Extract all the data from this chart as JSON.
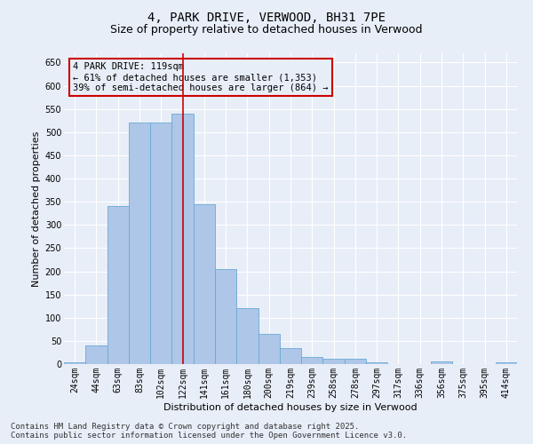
{
  "title_line1": "4, PARK DRIVE, VERWOOD, BH31 7PE",
  "title_line2": "Size of property relative to detached houses in Verwood",
  "xlabel": "Distribution of detached houses by size in Verwood",
  "ylabel": "Number of detached properties",
  "categories": [
    "24sqm",
    "44sqm",
    "63sqm",
    "83sqm",
    "102sqm",
    "122sqm",
    "141sqm",
    "161sqm",
    "180sqm",
    "200sqm",
    "219sqm",
    "239sqm",
    "258sqm",
    "278sqm",
    "297sqm",
    "317sqm",
    "336sqm",
    "356sqm",
    "375sqm",
    "395sqm",
    "414sqm"
  ],
  "values": [
    3,
    40,
    340,
    520,
    520,
    540,
    345,
    205,
    120,
    65,
    35,
    15,
    12,
    12,
    4,
    0,
    0,
    5,
    0,
    0,
    3
  ],
  "bar_color": "#aec6e8",
  "bar_edge_color": "#6aaad4",
  "background_color": "#e8eef8",
  "grid_color": "#ffffff",
  "vline_x": 5,
  "vline_color": "#cc0000",
  "annotation_line1": "4 PARK DRIVE: 119sqm",
  "annotation_line2": "← 61% of detached houses are smaller (1,353)",
  "annotation_line3": "39% of semi-detached houses are larger (864) →",
  "annotation_box_color": "#cc0000",
  "ylim": [
    0,
    670
  ],
  "yticks": [
    0,
    50,
    100,
    150,
    200,
    250,
    300,
    350,
    400,
    450,
    500,
    550,
    600,
    650
  ],
  "footer": "Contains HM Land Registry data © Crown copyright and database right 2025.\nContains public sector information licensed under the Open Government Licence v3.0.",
  "title_fontsize": 10,
  "subtitle_fontsize": 9,
  "axis_label_fontsize": 8,
  "tick_fontsize": 7,
  "annotation_fontsize": 7.5,
  "footer_fontsize": 6.5
}
